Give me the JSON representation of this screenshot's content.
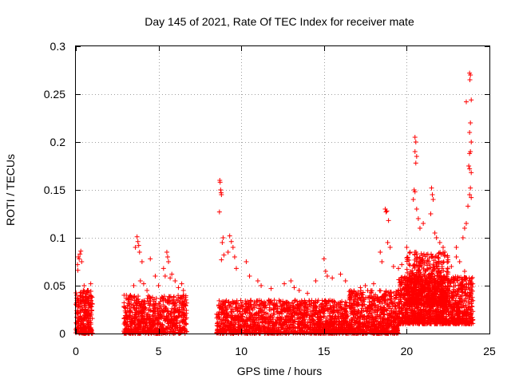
{
  "chart_data": {
    "type": "scatter",
    "title": "Day 145 of 2021, Rate Of TEC Index for receiver mate",
    "xlabel": "GPS time / hours",
    "ylabel": "ROTI / TECUs",
    "xlim": [
      0,
      25
    ],
    "ylim": [
      0,
      0.3
    ],
    "xticks": [
      0,
      5,
      10,
      15,
      20,
      25
    ],
    "xtick_labels": [
      "0",
      "5",
      "10",
      "15",
      "20",
      "25"
    ],
    "yticks": [
      0,
      0.05,
      0.1,
      0.15,
      0.2,
      0.25,
      0.3
    ],
    "ytick_labels": [
      "0",
      "0.05",
      "0.1",
      "0.15",
      "0.2",
      "0.25",
      "0.3"
    ],
    "grid": true,
    "marker": "+",
    "color": "#ff0000",
    "series": [
      {
        "name": "ROTI",
        "points": [
          [
            0.1,
            0.072
          ],
          [
            0.15,
            0.08
          ],
          [
            0.2,
            0.078
          ],
          [
            0.25,
            0.083
          ],
          [
            0.3,
            0.086
          ],
          [
            0.35,
            0.075
          ],
          [
            0.12,
            0.066
          ],
          [
            0.5,
            0.05
          ],
          [
            0.7,
            0.045
          ],
          [
            0.9,
            0.052
          ],
          [
            0.05,
            0.04
          ],
          [
            0.3,
            0.035
          ],
          [
            0.6,
            0.042
          ],
          [
            0.8,
            0.038
          ],
          [
            3.7,
            0.101
          ],
          [
            3.75,
            0.096
          ],
          [
            3.8,
            0.092
          ],
          [
            3.85,
            0.085
          ],
          [
            3.6,
            0.09
          ],
          [
            4.0,
            0.075
          ],
          [
            4.5,
            0.078
          ],
          [
            3.9,
            0.055
          ],
          [
            4.1,
            0.052
          ],
          [
            3.5,
            0.05
          ],
          [
            3.3,
            0.04
          ],
          [
            3.2,
            0.035
          ],
          [
            4.3,
            0.045
          ],
          [
            5.5,
            0.085
          ],
          [
            5.55,
            0.08
          ],
          [
            5.6,
            0.075
          ],
          [
            5.3,
            0.068
          ],
          [
            5.4,
            0.06
          ],
          [
            5.7,
            0.058
          ],
          [
            5.8,
            0.062
          ],
          [
            6.0,
            0.055
          ],
          [
            6.2,
            0.048
          ],
          [
            6.4,
            0.052
          ],
          [
            5.0,
            0.05
          ],
          [
            4.8,
            0.06
          ],
          [
            6.5,
            0.045
          ],
          [
            8.7,
            0.16
          ],
          [
            8.72,
            0.158
          ],
          [
            8.75,
            0.15
          ],
          [
            8.78,
            0.147
          ],
          [
            8.8,
            0.145
          ],
          [
            8.68,
            0.127
          ],
          [
            8.9,
            0.1
          ],
          [
            8.85,
            0.095
          ],
          [
            8.8,
            0.077
          ],
          [
            8.95,
            0.082
          ],
          [
            9.3,
            0.102
          ],
          [
            9.4,
            0.096
          ],
          [
            9.5,
            0.09
          ],
          [
            9.6,
            0.08
          ],
          [
            9.2,
            0.085
          ],
          [
            9.7,
            0.068
          ],
          [
            10.3,
            0.075
          ],
          [
            10.5,
            0.06
          ],
          [
            11.0,
            0.055
          ],
          [
            11.2,
            0.05
          ],
          [
            11.8,
            0.047
          ],
          [
            12.6,
            0.052
          ],
          [
            13.0,
            0.055
          ],
          [
            13.2,
            0.048
          ],
          [
            13.5,
            0.045
          ],
          [
            14.0,
            0.042
          ],
          [
            14.5,
            0.055
          ],
          [
            15.0,
            0.078
          ],
          [
            15.1,
            0.065
          ],
          [
            15.2,
            0.06
          ],
          [
            15.5,
            0.058
          ],
          [
            16.0,
            0.062
          ],
          [
            16.3,
            0.055
          ],
          [
            16.6,
            0.045
          ],
          [
            17.2,
            0.048
          ],
          [
            17.5,
            0.05
          ],
          [
            18.0,
            0.052
          ],
          [
            18.4,
            0.085
          ],
          [
            18.5,
            0.075
          ],
          [
            18.7,
            0.13
          ],
          [
            18.75,
            0.127
          ],
          [
            18.8,
            0.128
          ],
          [
            18.9,
            0.118
          ],
          [
            18.85,
            0.095
          ],
          [
            19.0,
            0.09
          ],
          [
            19.2,
            0.07
          ],
          [
            19.5,
            0.068
          ],
          [
            19.7,
            0.072
          ],
          [
            20.0,
            0.09
          ],
          [
            20.2,
            0.085
          ],
          [
            20.5,
            0.205
          ],
          [
            20.55,
            0.2
          ],
          [
            20.5,
            0.19
          ],
          [
            20.6,
            0.185
          ],
          [
            20.55,
            0.178
          ],
          [
            20.45,
            0.15
          ],
          [
            20.5,
            0.148
          ],
          [
            20.4,
            0.14
          ],
          [
            20.6,
            0.13
          ],
          [
            20.7,
            0.12
          ],
          [
            20.8,
            0.11
          ],
          [
            21.0,
            0.115
          ],
          [
            21.5,
            0.152
          ],
          [
            21.55,
            0.145
          ],
          [
            21.6,
            0.14
          ],
          [
            21.45,
            0.125
          ],
          [
            21.7,
            0.105
          ],
          [
            21.8,
            0.1
          ],
          [
            22.0,
            0.095
          ],
          [
            22.2,
            0.09
          ],
          [
            22.3,
            0.085
          ],
          [
            22.5,
            0.075
          ],
          [
            22.7,
            0.07
          ],
          [
            23.0,
            0.08
          ],
          [
            23.2,
            0.075
          ],
          [
            23.5,
            0.065
          ],
          [
            23.8,
            0.272
          ],
          [
            23.85,
            0.27
          ],
          [
            23.82,
            0.265
          ],
          [
            23.6,
            0.242
          ],
          [
            23.9,
            0.244
          ],
          [
            23.85,
            0.22
          ],
          [
            23.8,
            0.21
          ],
          [
            23.9,
            0.2
          ],
          [
            23.85,
            0.19
          ],
          [
            23.8,
            0.188
          ],
          [
            23.75,
            0.175
          ],
          [
            23.8,
            0.172
          ],
          [
            23.9,
            0.168
          ],
          [
            23.85,
            0.152
          ],
          [
            23.8,
            0.145
          ],
          [
            23.9,
            0.142
          ],
          [
            23.7,
            0.133
          ],
          [
            23.6,
            0.115
          ],
          [
            23.5,
            0.11
          ],
          [
            23.4,
            0.1
          ],
          [
            23.0,
            0.09
          ]
        ],
        "dense_segments": [
          {
            "x": [
              0,
              1.0
            ],
            "y": [
              0.0,
              0.045
            ],
            "density": 260
          },
          {
            "x": [
              2.9,
              6.7
            ],
            "y": [
              0.0,
              0.04
            ],
            "density": 700
          },
          {
            "x": [
              8.5,
              16.5
            ],
            "y": [
              0.0,
              0.035
            ],
            "density": 1500
          },
          {
            "x": [
              16.5,
              19.5
            ],
            "y": [
              0.0,
              0.045
            ],
            "density": 700
          },
          {
            "x": [
              19.5,
              24.0
            ],
            "y": [
              0.01,
              0.06
            ],
            "density": 1300
          },
          {
            "x": [
              20.0,
              22.5
            ],
            "y": [
              0.03,
              0.085
            ],
            "density": 500
          }
        ]
      }
    ]
  }
}
